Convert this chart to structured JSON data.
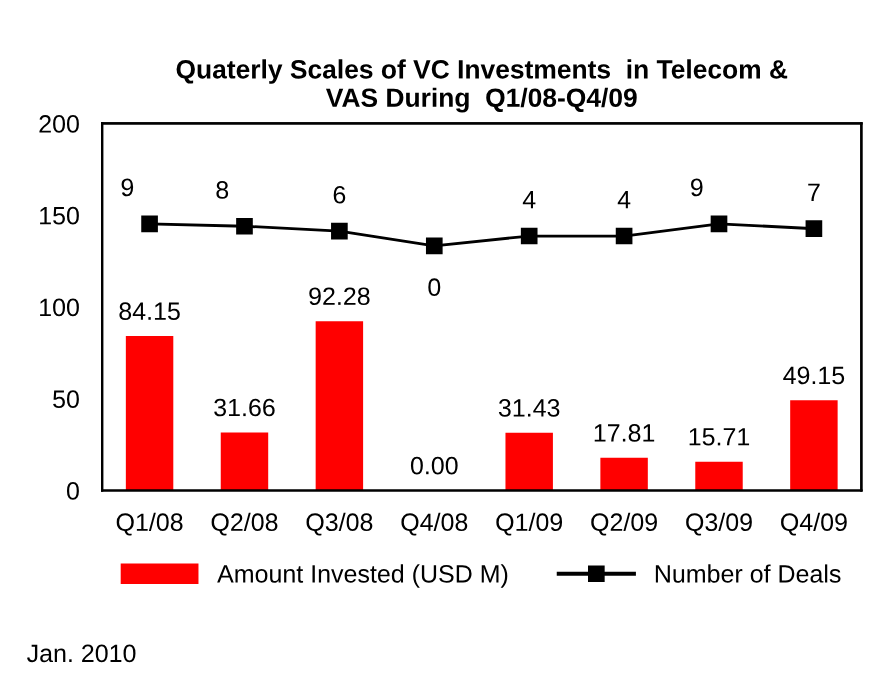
{
  "chart_data": {
    "type": "bar",
    "title": "Quaterly Scales of VC Investments  in Telecom &\nVAS During  Q1/08-Q4/09",
    "categories": [
      "Q1/08",
      "Q2/08",
      "Q3/08",
      "Q4/08",
      "Q1/09",
      "Q2/09",
      "Q3/09",
      "Q4/09"
    ],
    "series": [
      {
        "name": "Amount Invested (USD M)",
        "color": "#ff0000",
        "values": [
          84.15,
          31.66,
          92.28,
          0.0,
          31.43,
          17.81,
          15.71,
          49.15
        ],
        "value_labels": [
          "84.15",
          "31.66",
          "92.28",
          "0.00",
          "31.43",
          "17.81",
          "15.71",
          "49.15"
        ]
      },
      {
        "name": "Number of Deals",
        "type": "line",
        "axis": "y2",
        "color": "#000000",
        "marker": "square",
        "values": [
          9,
          8,
          6,
          0,
          4,
          4,
          9,
          7
        ]
      }
    ],
    "ylim": [
      0,
      200
    ],
    "yticks": [
      0,
      50,
      100,
      150,
      200
    ],
    "y2lim": [
      -100,
      50
    ],
    "data_labels": true,
    "grid": false,
    "legend": "bottom",
    "annotations": [
      "Jan. 2010"
    ]
  }
}
